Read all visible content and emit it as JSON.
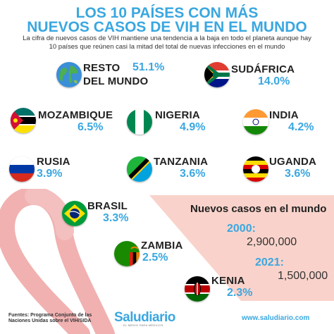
{
  "title": {
    "line1": "LOS 10 PAÍSES CON MÁS",
    "line2": "NUEVOS CASOS DE VIH EN EL MUNDO"
  },
  "subtitle": {
    "line1": "La cifra de nuevos casos de VIH mantiene una tendencia a la baja en todo el planeta aunque hay",
    "line2": "10 países que reúnen casi la mitad del total de nuevas infecciones en el mundo"
  },
  "chart_data": {
    "type": "table",
    "title": "LOS 10 PAÍSES CON MÁS NUEVOS CASOS DE VIH EN EL MUNDO",
    "rows": [
      {
        "name_lines": [
          "RESTO",
          "DEL MUNDO"
        ],
        "value": 51.1,
        "label": "51.1%",
        "flag": "globe-icon"
      },
      {
        "name_lines": [
          "SUDÁFRICA"
        ],
        "value": 14.0,
        "label": "14.0%",
        "flag": "south-africa-flag-icon"
      },
      {
        "name_lines": [
          "MOZAMBIQUE"
        ],
        "value": 6.5,
        "label": "6.5%",
        "flag": "mozambique-flag-icon"
      },
      {
        "name_lines": [
          "NIGERIA"
        ],
        "value": 4.9,
        "label": "4.9%",
        "flag": "nigeria-flag-icon"
      },
      {
        "name_lines": [
          "INDIA"
        ],
        "value": 4.2,
        "label": "4.2%",
        "flag": "india-flag-icon"
      },
      {
        "name_lines": [
          "RUSIA"
        ],
        "value": 3.9,
        "label": "3.9%",
        "flag": "russia-flag-icon"
      },
      {
        "name_lines": [
          "TANZANIA"
        ],
        "value": 3.6,
        "label": "3.6%",
        "flag": "tanzania-flag-icon"
      },
      {
        "name_lines": [
          "UGANDA"
        ],
        "value": 3.6,
        "label": "3.6%",
        "flag": "uganda-flag-icon"
      },
      {
        "name_lines": [
          "BRASIL"
        ],
        "value": 3.3,
        "label": "3.3%",
        "flag": "brazil-flag-icon"
      },
      {
        "name_lines": [
          "ZAMBIA"
        ],
        "value": 2.5,
        "label": "2.5%",
        "flag": "zambia-flag-icon"
      },
      {
        "name_lines": [
          "KENIA"
        ],
        "value": 2.3,
        "label": "2.3%",
        "flag": "kenya-flag-icon"
      }
    ],
    "world_new_cases": {
      "title": "Nuevos casos en el mundo",
      "entries": [
        {
          "year": "2000:",
          "value": 2900000,
          "label": "2,900,000"
        },
        {
          "year": "2021:",
          "value": 1500000,
          "label": "1,500,000"
        }
      ]
    }
  },
  "footer": {
    "source_line1": "Fuentes: Programa Conjunto de las",
    "source_line2": "Naciones Unidas sobre el VIH/SIDA",
    "logo": "Saludiario",
    "logo_tagline": "EL MEDIO PARA MÉDICOS",
    "url": "www.saludiario.com"
  },
  "colors": {
    "accent": "#3aa7e0",
    "text": "#222222",
    "ribbon": "#f1b1b1",
    "panel": "#f9d3cb"
  }
}
